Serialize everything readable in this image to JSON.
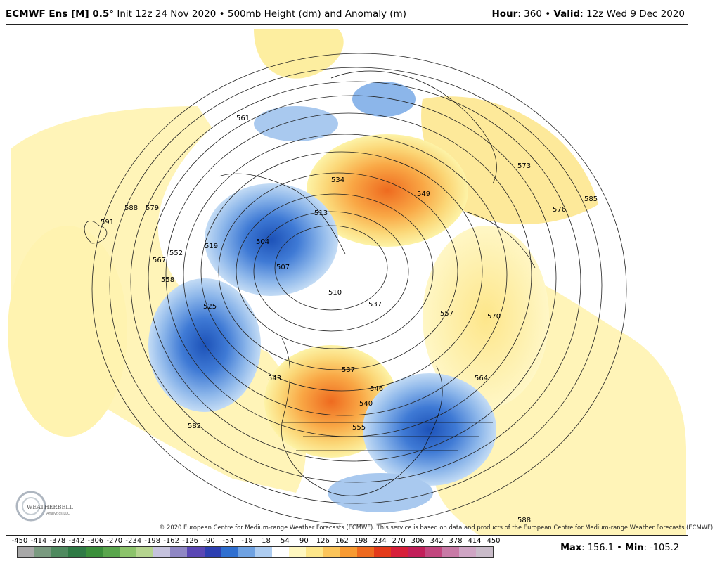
{
  "header": {
    "model": "ECMWF Ens [M] 0.5",
    "degree": "°",
    "init": "Init 12z 24 Nov 2020",
    "bullet": "•",
    "field": "500mb Height (dm) and Anomaly (m)",
    "hour_label": "Hour",
    "hour_value": ": 360",
    "valid_label": "Valid",
    "valid_value": ": 12z Wed 9 Dec 2020"
  },
  "map": {
    "contour_labels": [
      "561",
      "534",
      "549",
      "573",
      "576",
      "585",
      "591",
      "588",
      "579",
      "567",
      "552",
      "558",
      "519",
      "504",
      "513",
      "507",
      "510",
      "537",
      "557",
      "570",
      "564",
      "525",
      "543",
      "537",
      "546",
      "540",
      "555",
      "582",
      "588"
    ],
    "colors": {
      "positive_strong": "#ef6b1c",
      "positive_mid": "#f9c15b",
      "positive_weak": "#fdf3a7",
      "negative_strong": "#1f5fc7",
      "negative_mid": "#5a8fdc",
      "negative_weak": "#a9c9ef"
    }
  },
  "logo_text": "WEATHERBELL",
  "logo_sub": "Analytics LLC",
  "copyright": "© 2020 European Centre for Medium-range Weather Forecasts (ECMWF). This service is based on data and products of the European Centre for Medium-range Weather Forecasts (ECMWF).",
  "colorbar": {
    "ticks": [
      "-450",
      "-414",
      "-378",
      "-342",
      "-306",
      "-270",
      "-234",
      "-198",
      "-162",
      "-126",
      "-90",
      "-54",
      "-18",
      "18",
      "54",
      "90",
      "126",
      "162",
      "198",
      "234",
      "270",
      "306",
      "342",
      "378",
      "414",
      "450"
    ],
    "colors": [
      "#a8a8a8",
      "#7a9a80",
      "#4f8a5f",
      "#2f7a45",
      "#3b8f3b",
      "#5aa64d",
      "#8cc36b",
      "#b5d48f",
      "#c5c2dd",
      "#8f87c4",
      "#5a47b4",
      "#2d3fb1",
      "#2f6fd0",
      "#6fa2e2",
      "#aecdf1",
      "#ffffff",
      "#fff7c0",
      "#fde68a",
      "#fbc45a",
      "#f79a32",
      "#ee6a1f",
      "#e33a1a",
      "#d71f3a",
      "#c21f5a",
      "#c2477f",
      "#c87aa6",
      "#cfa5c4",
      "#c9bbc9"
    ]
  },
  "stats": {
    "max_label": "Max",
    "max_value": ": 156.1",
    "min_label": "Min",
    "min_value": ": -105.2",
    "bullet": "•"
  }
}
